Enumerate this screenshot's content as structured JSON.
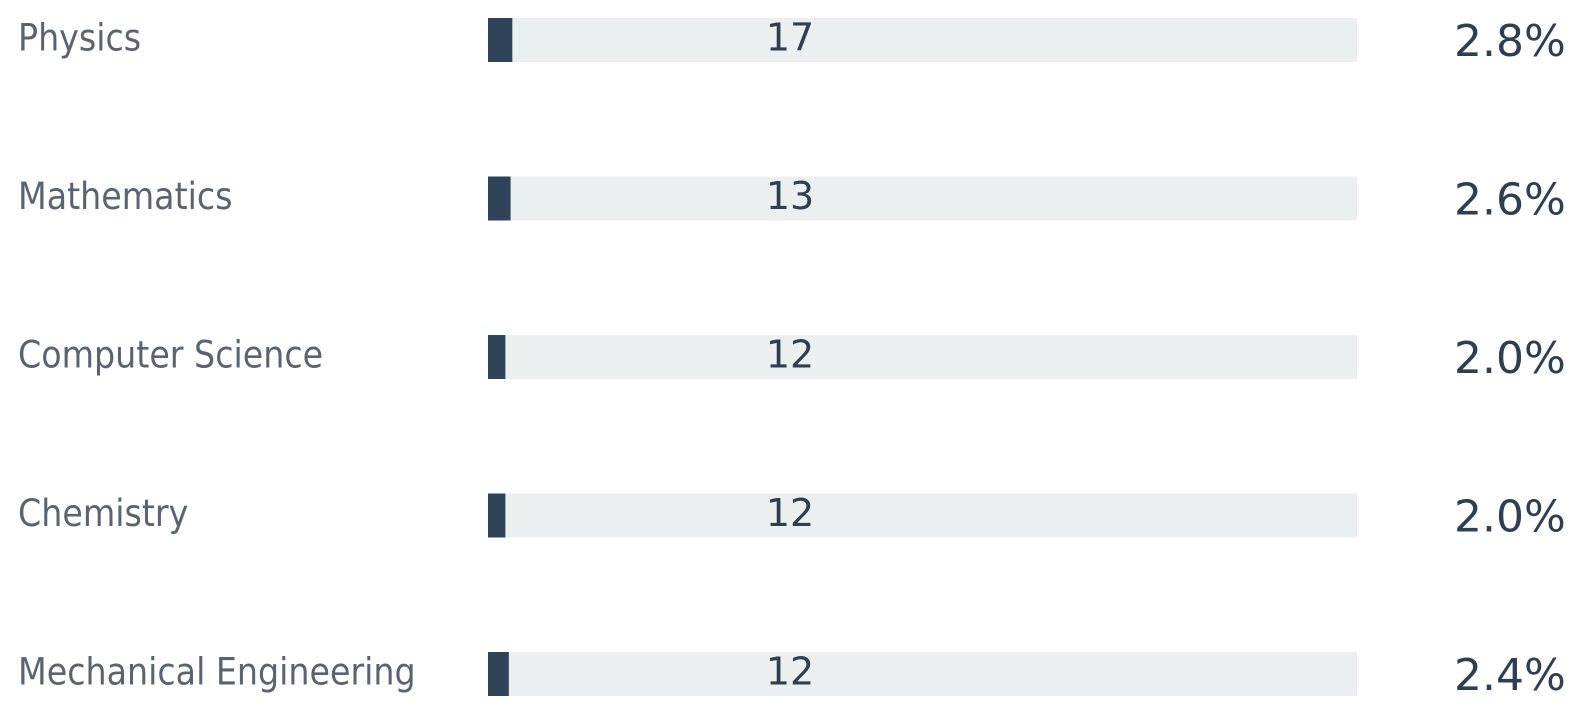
{
  "chart_data": {
    "type": "bar",
    "orientation": "horizontal",
    "categories": [
      "Physics",
      "Mathematics",
      "Computer Science",
      "Chemistry",
      "Mechanical Engineering"
    ],
    "values": [
      2.8,
      2.6,
      2.0,
      2.0,
      2.4
    ],
    "value_labels": [
      "2.8%",
      "2.6%",
      "2.0%",
      "2.0%",
      "2.4%"
    ],
    "counts": [
      17,
      13,
      12,
      12,
      12
    ],
    "xlim": [
      0,
      100
    ],
    "color": "#2f4359",
    "track_color": "#eceff0"
  }
}
